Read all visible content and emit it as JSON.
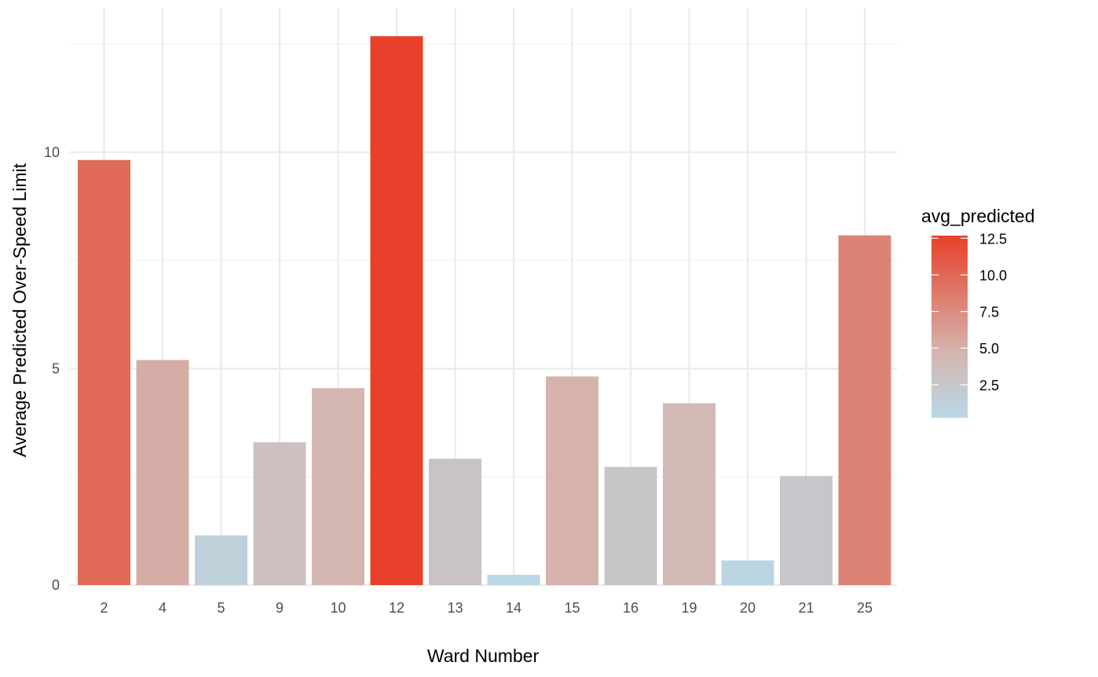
{
  "chart_data": {
    "type": "bar",
    "title": "",
    "xlabel": "Ward Number",
    "ylabel": "Average Predicted Over-Speed Limit",
    "categories": [
      "2",
      "4",
      "5",
      "9",
      "10",
      "12",
      "13",
      "14",
      "15",
      "16",
      "19",
      "20",
      "21",
      "25"
    ],
    "values": [
      9.82,
      5.2,
      1.15,
      3.3,
      4.55,
      12.68,
      2.92,
      0.24,
      4.82,
      2.73,
      4.2,
      0.57,
      2.52,
      8.08
    ],
    "ylim": [
      0,
      13.2
    ],
    "y_ticks": [
      0,
      5,
      10
    ],
    "y_tick_labels": [
      "0",
      "5",
      "10"
    ],
    "grid": true,
    "fill_scale": {
      "name": "avg_predicted",
      "low_color": "#b8d8e6",
      "mid_color": "#d4b6b0",
      "high_color": "#e8402a",
      "domain": [
        0.24,
        12.68
      ],
      "breaks": [
        2.5,
        5.0,
        7.5,
        10.0,
        12.5
      ],
      "break_labels": [
        "2.5",
        "5.0",
        "7.5",
        "10.0",
        "12.5"
      ]
    },
    "legend_position": "right"
  }
}
